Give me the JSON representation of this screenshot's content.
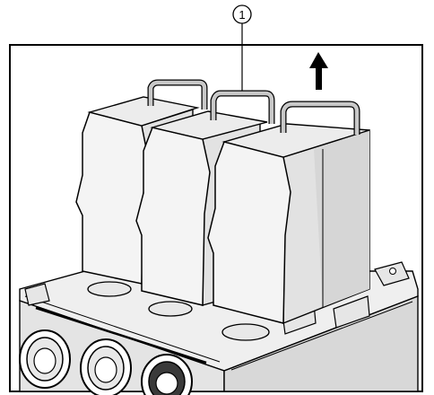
{
  "callouts": [
    {
      "number": "1",
      "refers_to": "handle"
    }
  ],
  "icons": {
    "direction": "arrow-up-icon"
  },
  "colors": {
    "line": "#000000",
    "module_face": "#f4f4f4",
    "module_side": "#e2e2e2",
    "module_shade": "#cfcfcf",
    "handle": "#c8c8c8",
    "base": "#efefef",
    "speaker_dark": "#3a3a3a"
  }
}
